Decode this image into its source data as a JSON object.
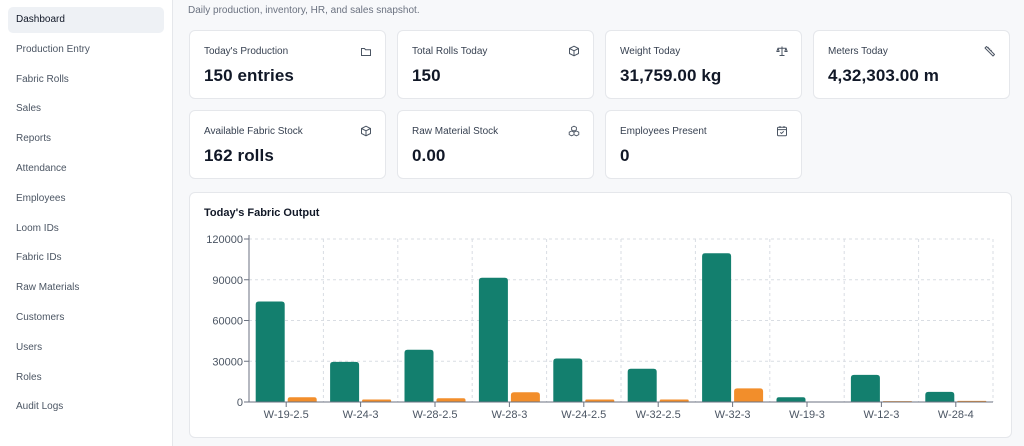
{
  "sidebar": {
    "items": [
      {
        "label": "Dashboard",
        "active": true
      },
      {
        "label": "Production Entry"
      },
      {
        "label": "Fabric Rolls"
      },
      {
        "label": "Sales"
      },
      {
        "label": "Reports"
      },
      {
        "label": "Attendance"
      },
      {
        "label": "Employees"
      },
      {
        "label": "Loom IDs"
      },
      {
        "label": "Fabric IDs"
      },
      {
        "label": "Raw Materials"
      },
      {
        "label": "Customers"
      },
      {
        "label": "Users"
      },
      {
        "label": "Roles"
      },
      {
        "label": "Audit Logs"
      }
    ]
  },
  "header": {
    "subtitle": "Daily production, inventory, HR, and sales snapshot."
  },
  "stats": [
    {
      "label": "Today's Production",
      "value": "150 entries",
      "icon": "folder-icon"
    },
    {
      "label": "Total Rolls Today",
      "value": "150",
      "icon": "box-icon"
    },
    {
      "label": "Weight Today",
      "value": "31,759.00 kg",
      "icon": "scale-icon"
    },
    {
      "label": "Meters Today",
      "value": "4,32,303.00 m",
      "icon": "ruler-icon"
    },
    {
      "label": "Available Fabric Stock",
      "value": "162 rolls",
      "icon": "box-icon"
    },
    {
      "label": "Raw Material Stock",
      "value": "0.00",
      "icon": "boxes-icon"
    },
    {
      "label": "Employees Present",
      "value": "0",
      "icon": "calendar-check-icon"
    }
  ],
  "colors": {
    "primary_series": "#137f6e",
    "secondary_series": "#f28e2b",
    "grid": "#d9dde3",
    "axis": "#6b7280"
  },
  "chart": {
    "title": "Today's Fabric Output"
  },
  "chart_data": {
    "type": "bar",
    "title": "Today's Fabric Output",
    "categories": [
      "W-19-2.5",
      "W-24-3",
      "W-28-2.5",
      "W-28-3",
      "W-24-2.5",
      "W-32-2.5",
      "W-32-3",
      "W-19-3",
      "W-12-3",
      "W-28-4"
    ],
    "series": [
      {
        "values": [
          74000,
          29500,
          38500,
          91500,
          32000,
          24500,
          109500,
          3500,
          20000,
          7500
        ],
        "color": "#137f6e"
      },
      {
        "values": [
          3500,
          1800,
          2800,
          7200,
          1800,
          1800,
          10000,
          0,
          600,
          800
        ],
        "color": "#f28e2b"
      }
    ],
    "ylim": [
      0,
      120000
    ],
    "yticks": [
      0,
      30000,
      60000,
      90000,
      120000
    ],
    "xlabel": "",
    "ylabel": "",
    "grid": true,
    "legend": "none"
  }
}
